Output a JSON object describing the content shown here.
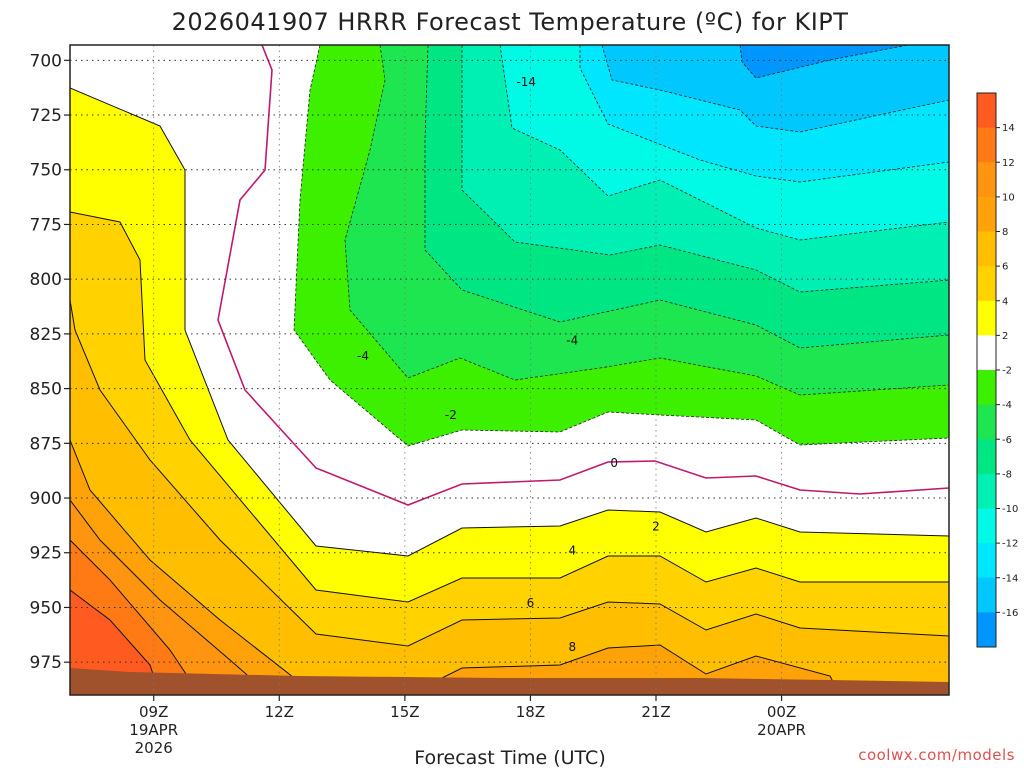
{
  "chart_data": {
    "type": "heatmap",
    "title": "2026041907 HRRR Forecast Temperature (ºC) for KIPT",
    "xlabel": "Forecast Time (UTC)",
    "ylabel": "",
    "y_axis": "pressure (hPa), inverted",
    "ylim": [
      990,
      693
    ],
    "y_ticks": [
      700,
      725,
      750,
      775,
      800,
      825,
      850,
      875,
      900,
      925,
      950,
      975
    ],
    "xlim": [
      7,
      28
    ],
    "x_ticks": [
      {
        "hour": 9,
        "label": "09Z",
        "sub1": "19APR",
        "sub2": "2026"
      },
      {
        "hour": 12,
        "label": "12Z",
        "sub1": "",
        "sub2": ""
      },
      {
        "hour": 15,
        "label": "15Z",
        "sub1": "",
        "sub2": ""
      },
      {
        "hour": 18,
        "label": "18Z",
        "sub1": "",
        "sub2": ""
      },
      {
        "hour": 21,
        "label": "21Z",
        "sub1": "",
        "sub2": ""
      },
      {
        "hour": 24,
        "label": "00Z",
        "sub1": "20APR",
        "sub2": ""
      }
    ],
    "grid": true,
    "colorbar": {
      "position": "right",
      "tick_labels": [
        "14",
        "12",
        "10",
        "8",
        "6",
        "4",
        "2",
        "-2",
        "-4",
        "-6",
        "-8",
        "-10",
        "-12",
        "-14",
        "-16"
      ],
      "levels": [
        {
          "range": "above 14",
          "color": "#ff5a1f"
        },
        {
          "range": "12 to 14",
          "color": "#ff7a14"
        },
        {
          "range": "10 to 12",
          "color": "#ff9410"
        },
        {
          "range": "8 to 10",
          "color": "#ffa20a"
        },
        {
          "range": "6 to 8",
          "color": "#ffbe00"
        },
        {
          "range": "4 to 6",
          "color": "#ffd200"
        },
        {
          "range": "2 to 4",
          "color": "#ffff00"
        },
        {
          "range": "-2 to 2",
          "color": "#ffffff"
        },
        {
          "range": "-4 to -2",
          "color": "#3cf000"
        },
        {
          "range": "-6 to -4",
          "color": "#1ee650"
        },
        {
          "range": "-8 to -6",
          "color": "#00e682"
        },
        {
          "range": "-10 to -8",
          "color": "#00f0b4"
        },
        {
          "range": "-12 to -10",
          "color": "#00fae6"
        },
        {
          "range": "-14 to -12",
          "color": "#00e6ff"
        },
        {
          "range": "-16 to -14",
          "color": "#00c8ff"
        },
        {
          "range": "below -16",
          "color": "#0096ff"
        }
      ]
    },
    "contour_labels": [
      {
        "text": "-14",
        "hour": 17.9,
        "p": 710
      },
      {
        "text": "-4",
        "hour": 14.0,
        "p": 835
      },
      {
        "text": "-4",
        "hour": 19.0,
        "p": 828
      },
      {
        "text": "-2",
        "hour": 16.1,
        "p": 862
      },
      {
        "text": "0",
        "hour": 20.0,
        "p": 884
      },
      {
        "text": "2",
        "hour": 21.0,
        "p": 913
      },
      {
        "text": "4",
        "hour": 19.0,
        "p": 924
      },
      {
        "text": "6",
        "hour": 18.0,
        "p": 948
      },
      {
        "text": "8",
        "hour": 19.0,
        "p": 968
      }
    ],
    "ground_color": "#a0522d"
  },
  "credit": "coolwx.com/models"
}
